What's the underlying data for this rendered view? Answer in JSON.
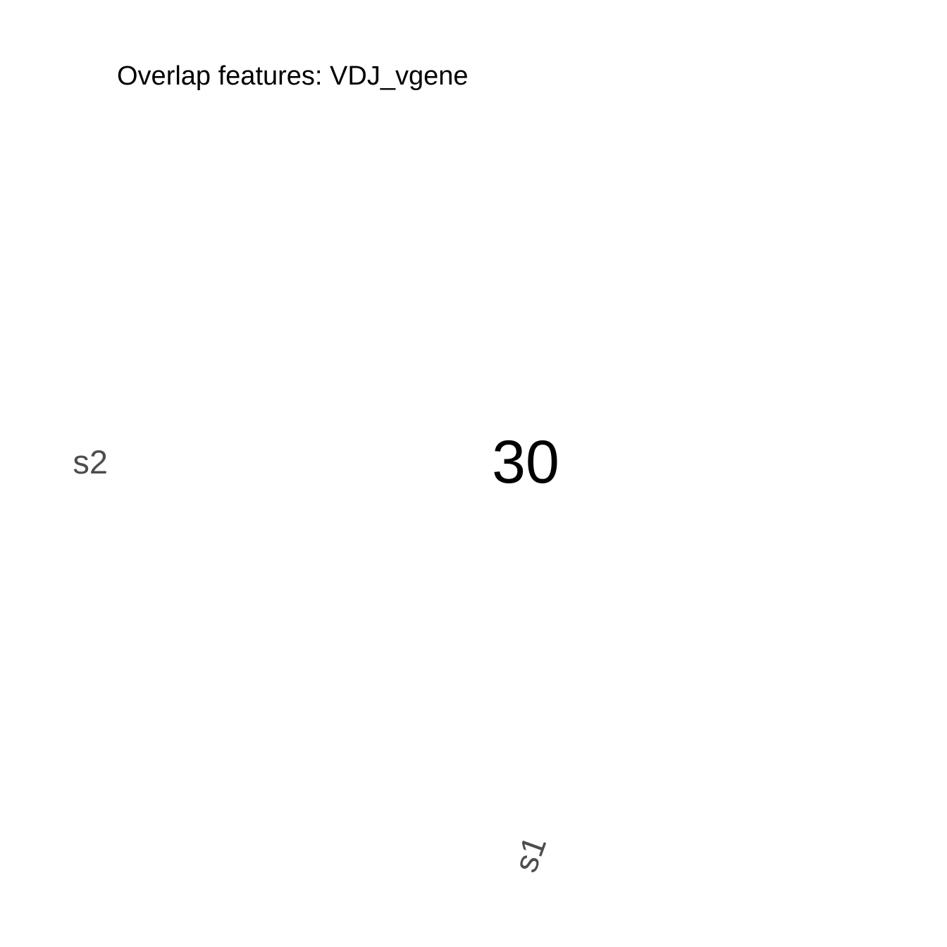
{
  "chart_data": {
    "type": "heatmap",
    "title": "Overlap features: VDJ_vgene",
    "x_categories": [
      "s1"
    ],
    "y_categories": [
      "s2"
    ],
    "cells": [
      {
        "x": "s1",
        "y": "s2",
        "value": 30,
        "label": "30"
      }
    ],
    "grid": false,
    "legend": "none"
  }
}
